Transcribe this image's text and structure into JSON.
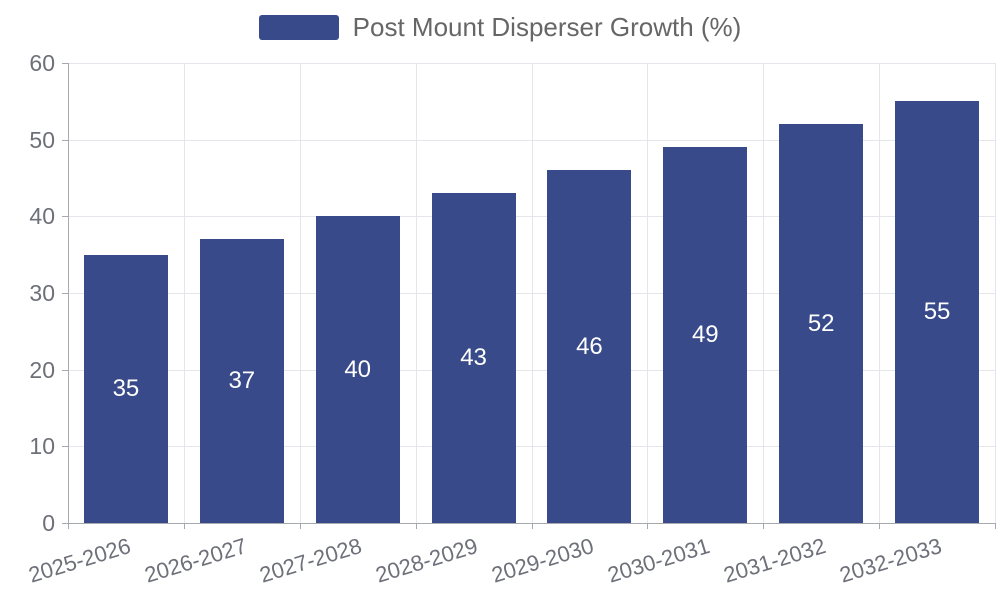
{
  "chart_data": {
    "type": "bar",
    "title": "",
    "xlabel": "",
    "ylabel": "",
    "categories": [
      "2025-2026",
      "2026-2027",
      "2027-2028",
      "2028-2029",
      "2029-2030",
      "2030-2031",
      "2031-2032",
      "2032-2033"
    ],
    "series": [
      {
        "name": "Post Mount Disperser Growth (%)",
        "color": "#384a89",
        "values": [
          35,
          37,
          40,
          43,
          46,
          49,
          52,
          55
        ]
      }
    ],
    "ylim": [
      0,
      60
    ],
    "yticks": [
      0,
      10,
      20,
      30,
      40,
      50,
      60
    ],
    "grid": true,
    "legend_position": "top",
    "value_labels": "inside-center",
    "colors": {
      "bar": "#384a89",
      "value_label": "#ffffff",
      "axis_text": "#6e7079",
      "legend_text": "#666666",
      "grid_line": "#e4e6eb",
      "axis_line": "#a6a9ad",
      "background": "#ffffff"
    }
  }
}
